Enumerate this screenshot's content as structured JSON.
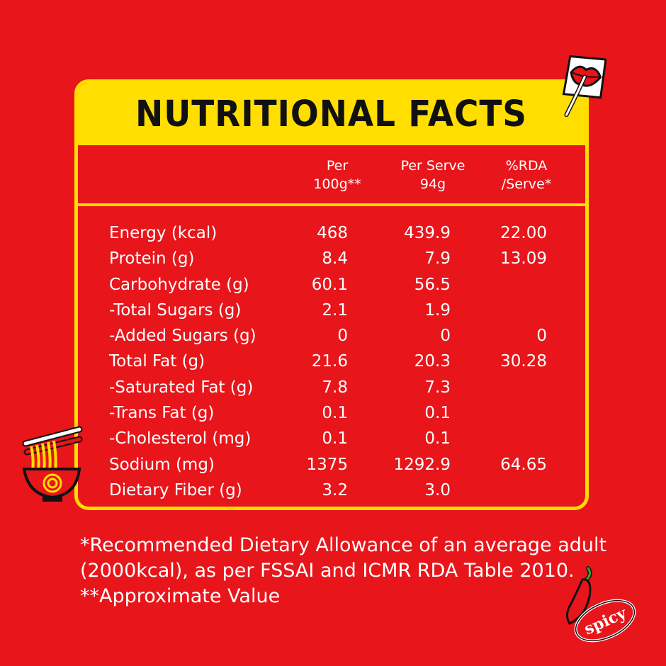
{
  "title": "NUTRITIONAL FACTS",
  "columns": [
    "Per\n100g**",
    "Per Serve\n94g",
    "%RDA\n/Serve*"
  ],
  "rows": [
    {
      "nutrient": "Energy (kcal)",
      "per100": "468",
      "perServe": "439.9",
      "rda": "22.00"
    },
    {
      "nutrient": "Protein (g)",
      "per100": "8.4",
      "perServe": "7.9",
      "rda": "13.09"
    },
    {
      "nutrient": "Carbohydrate (g)",
      "per100": "60.1",
      "perServe": "56.5",
      "rda": ""
    },
    {
      "nutrient": "-Total Sugars (g)",
      "per100": "2.1",
      "perServe": "1.9",
      "rda": ""
    },
    {
      "nutrient": "-Added Sugars (g)",
      "per100": "0",
      "perServe": "0",
      "rda": "0"
    },
    {
      "nutrient": "Total Fat (g)",
      "per100": "21.6",
      "perServe": "20.3",
      "rda": "30.28"
    },
    {
      "nutrient": "-Saturated Fat (g)",
      "per100": "7.8",
      "perServe": "7.3",
      "rda": ""
    },
    {
      "nutrient": "-Trans Fat (g)",
      "per100": "0.1",
      "perServe": "0.1",
      "rda": ""
    },
    {
      "nutrient": "-Cholesterol (mg)",
      "per100": "0.1",
      "perServe": "0.1",
      "rda": ""
    },
    {
      "nutrient": "Sodium (mg)",
      "per100": "1375",
      "perServe": "1292.9",
      "rda": "64.65"
    },
    {
      "nutrient": "Dietary Fiber (g)",
      "per100": "3.2",
      "perServe": "3.0",
      "rda": ""
    }
  ],
  "footnotes": [
    "*Recommended Dietary Allowance of an average adult",
    "(2000kcal), as per FSSAI and ICMR RDA Table 2010.",
    "**Approximate Value"
  ],
  "stickers": {
    "lips_icon": "lips-with-fork-sticker",
    "noodle_icon": "noodle-bowl-sticker",
    "spicy_label": "spicy"
  },
  "colors": {
    "background": "#e8151b",
    "accent": "#ffde00",
    "title_text": "#111111"
  }
}
